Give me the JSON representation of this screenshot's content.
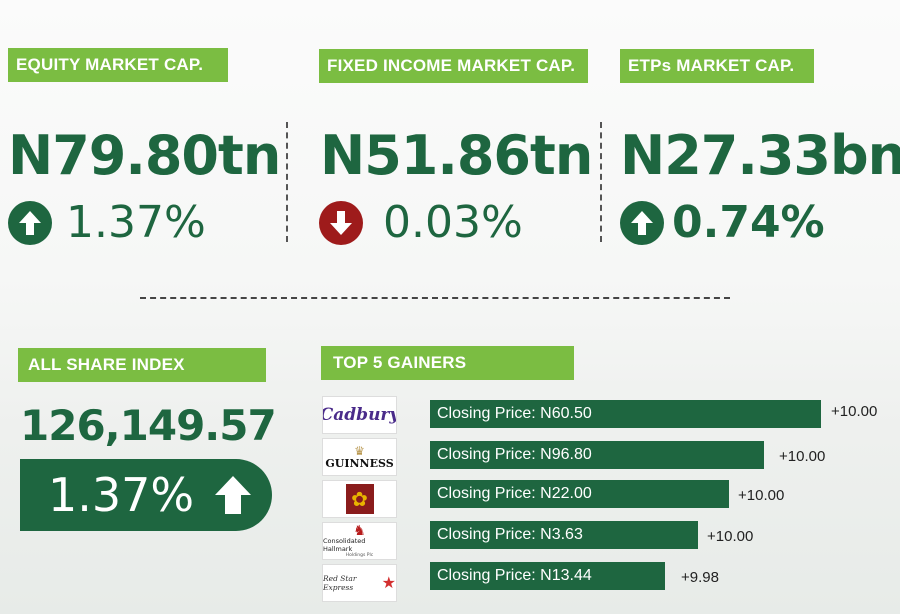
{
  "equity": {
    "label": "EQUITY MARKET CAP.",
    "value": "N79.80tn",
    "change": "1.37%",
    "direction": "up"
  },
  "fixed_income": {
    "label": "FIXED INCOME MARKET CAP.",
    "value": "N51.86tn",
    "change": "0.03%",
    "direction": "down"
  },
  "etps": {
    "label": "ETPs MARKET CAP.",
    "value": "N27.33bn",
    "change": "0.74%",
    "direction": "up"
  },
  "asi": {
    "label": "ALL SHARE INDEX",
    "value": "126,149.57",
    "change": "1.37%",
    "direction": "up"
  },
  "gainers": {
    "label": "TOP 5 GAINERS",
    "items": [
      {
        "logo": "Cadbury",
        "price_label": "Closing Price: N60.50",
        "price": 60.5,
        "change": "+10.00"
      },
      {
        "logo": "GUINNESS",
        "price_label": "Closing Price: N96.80",
        "price": 96.8,
        "change": "+10.00"
      },
      {
        "logo": "NAHCO",
        "price_label": "Closing Price: N22.00",
        "price": 22.0,
        "change": "+10.00"
      },
      {
        "logo": "Consolidated Hallmark",
        "logo_sub": "Holdings Plc",
        "price_label": "Closing Price: N3.63",
        "price": 3.63,
        "change": "+10.00"
      },
      {
        "logo": "Red Star Express",
        "price_label": "Closing Price: N13.44",
        "price": 13.44,
        "change": "+9.98"
      }
    ]
  },
  "colors": {
    "green_dark": "#1e6640",
    "green_light": "#7bbd42",
    "red": "#9e1b1b"
  }
}
